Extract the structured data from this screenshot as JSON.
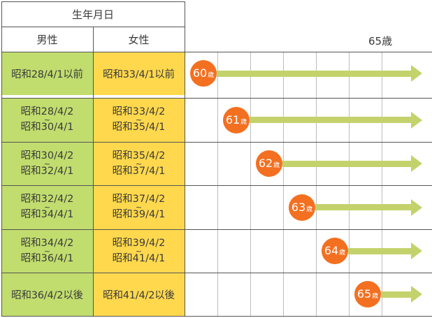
{
  "header": {
    "birth_date": "生年月日",
    "male": "男性",
    "female": "女性",
    "age_label": "65歳"
  },
  "rows": [
    {
      "male": [
        "昭和28/4/1以前"
      ],
      "female": [
        "昭和33/4/1以前"
      ],
      "age": "60",
      "unit": "歳"
    },
    {
      "male": [
        "昭和28/4/2",
        "昭和30/4/1"
      ],
      "female": [
        "昭和33/4/2",
        "昭和35/4/1"
      ],
      "age": "61",
      "unit": "歳"
    },
    {
      "male": [
        "昭和30/4/2",
        "昭和32/4/1"
      ],
      "female": [
        "昭和35/4/2",
        "昭和37/4/1"
      ],
      "age": "62",
      "unit": "歳"
    },
    {
      "male": [
        "昭和32/4/2",
        "昭和34/4/1"
      ],
      "female": [
        "昭和37/4/2",
        "昭和39/4/1"
      ],
      "age": "63",
      "unit": "歳"
    },
    {
      "male": [
        "昭和34/4/2",
        "昭和36/4/1"
      ],
      "female": [
        "昭和39/4/2",
        "昭和41/4/1"
      ],
      "age": "64",
      "unit": "歳"
    },
    {
      "male": [
        "昭和36/4/2以後"
      ],
      "female": [
        "昭和41/4/2以後"
      ],
      "age": "65",
      "unit": "歳"
    }
  ],
  "tilde": "~",
  "colors": {
    "male_bg": "#c1dd6e",
    "female_bg": "#ffd84d",
    "circle": "#f37021",
    "arrow": "#c4d26c"
  }
}
